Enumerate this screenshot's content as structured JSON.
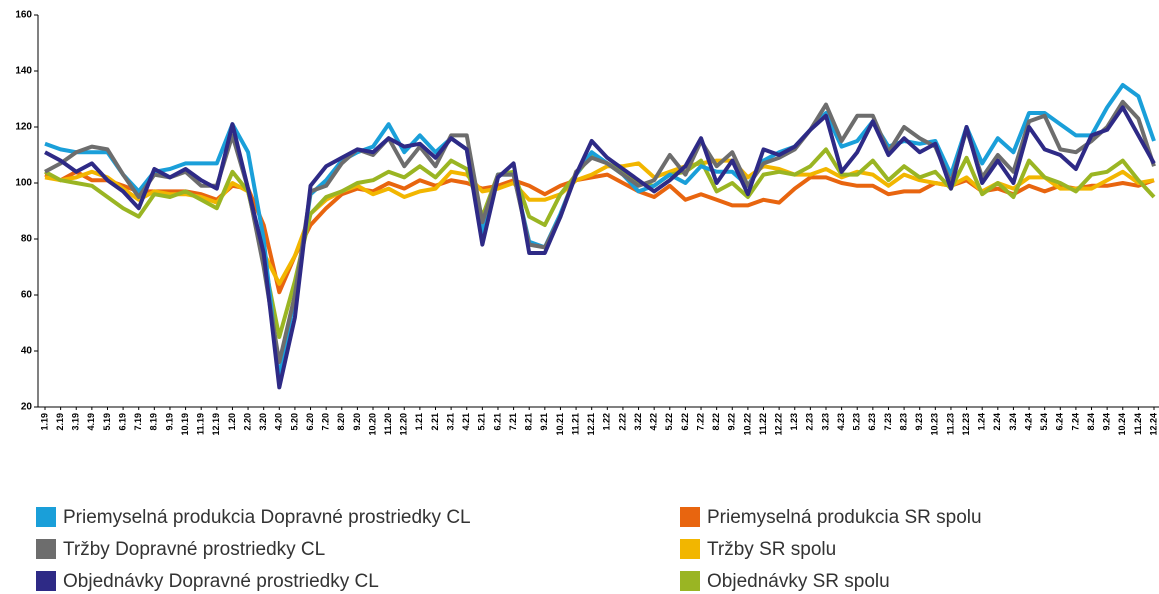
{
  "chart_data": {
    "type": "line",
    "categories": [
      "1.19",
      "2.19",
      "3.19",
      "4.19",
      "5.19",
      "6.19",
      "7.19",
      "8.19",
      "9.19",
      "10.19",
      "11.19",
      "12.19",
      "1.20",
      "2.20",
      "3.20",
      "4.20",
      "5.20",
      "6.20",
      "7.20",
      "8.20",
      "9.20",
      "10.20",
      "11.20",
      "12.20",
      "1.21",
      "2.21",
      "3.21",
      "4.21",
      "5.21",
      "6.21",
      "7.21",
      "8.21",
      "9.21",
      "10.21",
      "11.21",
      "12.21",
      "1.22",
      "2.22",
      "3.22",
      "4.22",
      "5.22",
      "6.22",
      "7.22",
      "8.22",
      "9.22",
      "10.22",
      "11.22",
      "12.22",
      "1.23",
      "2.23",
      "3.23",
      "4.23",
      "5.23",
      "6.23",
      "7.23",
      "8.23",
      "9.23",
      "10.23",
      "11.23",
      "12.23",
      "1.24",
      "2.24",
      "3.24",
      "4.24",
      "5.24",
      "6.24",
      "7.24",
      "8.24",
      "9.24",
      "10.24",
      "11.24",
      "12.24"
    ],
    "series": [
      {
        "name": "Priemyselná produkcia Dopravné prostriedky CL",
        "color": "#1a9fd9",
        "values": [
          114,
          112,
          111,
          111,
          111,
          103,
          97,
          104,
          105,
          107,
          107,
          107,
          121,
          111,
          80,
          30,
          60,
          96,
          101,
          108,
          111,
          113,
          121,
          111,
          117,
          111,
          116,
          112,
          82,
          103,
          103,
          79,
          77,
          89,
          103,
          111,
          107,
          103,
          97,
          99,
          103,
          100,
          106,
          104,
          104,
          99,
          108,
          111,
          113,
          119,
          125,
          113,
          115,
          122,
          113,
          115,
          114,
          115,
          103,
          120,
          107,
          116,
          111,
          125,
          125,
          121,
          117,
          117,
          127,
          135,
          131,
          115
        ]
      },
      {
        "name": "Priemyselná produkcia SR spolu",
        "color": "#e8650f",
        "values": [
          103,
          101,
          104,
          101,
          101,
          99,
          97,
          97,
          97,
          97,
          96,
          94,
          99,
          98,
          85,
          61,
          74,
          85,
          91,
          96,
          98,
          97,
          100,
          98,
          101,
          99,
          101,
          100,
          98,
          99,
          101,
          99,
          96,
          99,
          101,
          102,
          103,
          100,
          97,
          95,
          99,
          94,
          96,
          94,
          92,
          92,
          94,
          93,
          98,
          102,
          102,
          100,
          99,
          99,
          96,
          97,
          97,
          100,
          99,
          101,
          97,
          98,
          96,
          99,
          97,
          99,
          98,
          99,
          99,
          100,
          99,
          101
        ]
      },
      {
        "name": "Tržby Dopravné prostriedky CL",
        "color": "#6d6d6d",
        "values": [
          104,
          107,
          111,
          113,
          112,
          103,
          95,
          103,
          102,
          104,
          99,
          99,
          117,
          98,
          70,
          36,
          60,
          97,
          99,
          107,
          112,
          110,
          116,
          106,
          113,
          106,
          117,
          117,
          86,
          103,
          103,
          78,
          77,
          88,
          104,
          109,
          107,
          103,
          99,
          101,
          110,
          103,
          115,
          106,
          111,
          99,
          107,
          109,
          112,
          119,
          128,
          115,
          124,
          124,
          111,
          120,
          116,
          113,
          100,
          119,
          102,
          110,
          104,
          122,
          124,
          112,
          111,
          115,
          120,
          129,
          123,
          106
        ]
      },
      {
        "name": "Tržby SR spolu",
        "color": "#f2b600",
        "values": [
          102,
          101,
          102,
          104,
          102,
          98,
          94,
          97,
          96,
          96,
          95,
          93,
          100,
          97,
          75,
          64,
          74,
          89,
          94,
          97,
          99,
          96,
          98,
          95,
          97,
          98,
          104,
          103,
          97,
          98,
          100,
          94,
          94,
          96,
          101,
          103,
          106,
          106,
          107,
          102,
          104,
          106,
          107,
          108,
          108,
          102,
          106,
          105,
          103,
          103,
          105,
          102,
          104,
          103,
          99,
          103,
          101,
          100,
          99,
          102,
          97,
          100,
          98,
          102,
          102,
          98,
          98,
          98,
          101,
          104,
          100,
          101
        ]
      },
      {
        "name": "Objednávky Dopravné prostriedky CL",
        "color": "#2e2a86",
        "values": [
          111,
          108,
          104,
          107,
          101,
          97,
          91,
          105,
          102,
          105,
          101,
          98,
          121,
          98,
          75,
          27,
          52,
          99,
          106,
          109,
          112,
          111,
          116,
          113,
          114,
          109,
          116,
          112,
          78,
          102,
          107,
          75,
          75,
          88,
          103,
          115,
          109,
          105,
          101,
          97,
          101,
          106,
          116,
          100,
          108,
          96,
          112,
          110,
          113,
          119,
          124,
          104,
          111,
          122,
          110,
          116,
          111,
          114,
          98,
          120,
          100,
          108,
          100,
          120,
          112,
          110,
          105,
          117,
          119,
          127,
          117,
          107
        ]
      },
      {
        "name": "Objednávky SR spolu",
        "color": "#9ab523",
        "values": [
          104,
          101,
          100,
          99,
          95,
          91,
          88,
          96,
          95,
          97,
          94,
          91,
          104,
          97,
          73,
          45,
          65,
          89,
          95,
          97,
          100,
          101,
          104,
          102,
          106,
          102,
          108,
          105,
          88,
          103,
          104,
          88,
          85,
          96,
          103,
          110,
          107,
          104,
          100,
          99,
          103,
          104,
          108,
          97,
          100,
          95,
          103,
          104,
          103,
          106,
          112,
          103,
          103,
          108,
          101,
          106,
          102,
          104,
          98,
          109,
          96,
          100,
          95,
          108,
          102,
          100,
          97,
          103,
          104,
          108,
          101,
          95
        ]
      }
    ],
    "ylim": [
      20,
      160
    ],
    "yticks": [
      20,
      40,
      60,
      80,
      100,
      120,
      140,
      160
    ]
  }
}
